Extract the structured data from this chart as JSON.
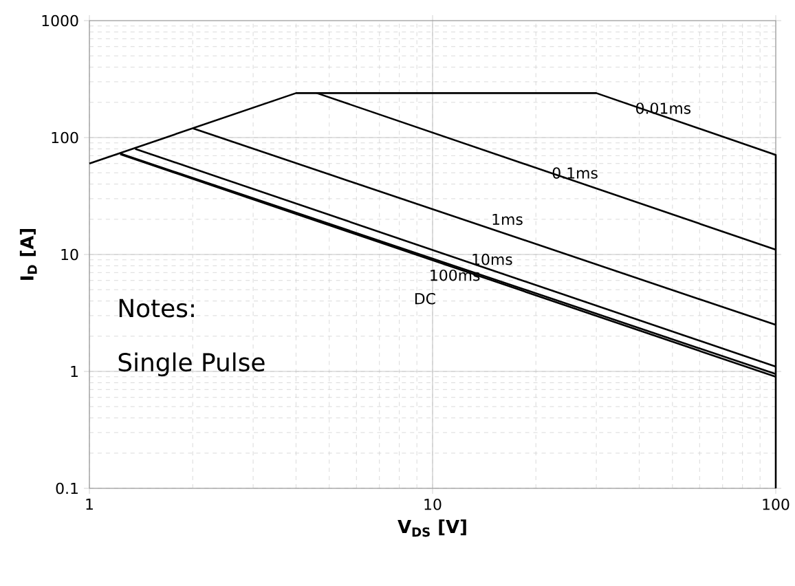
{
  "chart_data": {
    "type": "line",
    "xlabel": "V$_{DS}$ [V]",
    "ylabel": "I$_{D}$ [A]",
    "log": "xy",
    "grid": true,
    "marker": "none",
    "line_style": "solid",
    "xlim": [
      1,
      100
    ],
    "ylim": [
      0.1,
      1000
    ],
    "xticks": [
      1,
      10,
      100
    ],
    "yticks": [
      0.1,
      1,
      10,
      100,
      1000
    ],
    "series": [
      {
        "color": "#000000",
        "x": [
          1,
          4,
          30,
          100,
          100
        ],
        "values": [
          60,
          240,
          240,
          71,
          0.1
        ]
      },
      {
        "color": "#000000",
        "x": [
          4.6,
          100
        ],
        "values": [
          240,
          11
        ]
      },
      {
        "color": "#000000",
        "x": [
          2,
          100
        ],
        "values": [
          120,
          2.5
        ]
      },
      {
        "color": "#000000",
        "x": [
          1.36,
          100
        ],
        "values": [
          80,
          1.1
        ]
      },
      {
        "color": "#000000",
        "x": [
          1.23,
          100
        ],
        "values": [
          73,
          0.95
        ]
      },
      {
        "color": "#000000",
        "x": [
          1.23,
          100
        ],
        "values": [
          72,
          0.9
        ]
      }
    ],
    "annotations": [
      {
        "text": "0.01ms",
        "x": 47,
        "y": 152
      },
      {
        "text": "0.1ms",
        "x": 26,
        "y": 42.5
      },
      {
        "text": "1ms",
        "x": 16.5,
        "y": 14.9
      },
      {
        "text": "10ms",
        "x": 14.9,
        "y": 7.35
      },
      {
        "text": "100ms",
        "x": 11.6,
        "y": 8
      },
      {
        "text": "DC",
        "x": 9.5,
        "y": 9.4
      },
      "Notes:",
      "Single Pulse"
    ]
  }
}
